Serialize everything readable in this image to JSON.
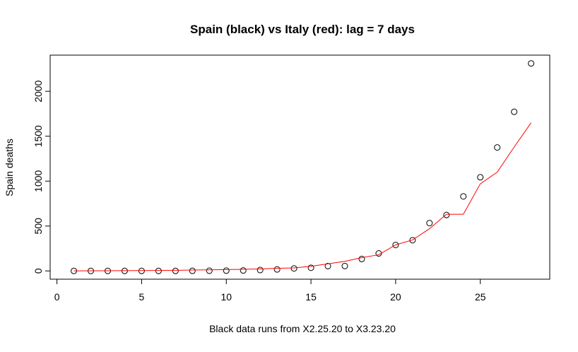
{
  "chart_data": {
    "type": "scatter-line",
    "title": "Spain (black) vs Italy (red): lag = 7 days",
    "x_label": "Black data runs from X2.25.20 to X3.23.20",
    "y_label": "Spain deaths",
    "x": [
      1,
      2,
      3,
      4,
      5,
      6,
      7,
      8,
      9,
      10,
      11,
      12,
      13,
      14,
      15,
      16,
      17,
      18,
      19,
      20,
      21,
      22,
      23,
      24,
      25,
      26,
      27,
      28
    ],
    "series": [
      {
        "name": "Spain",
        "color": "#000000",
        "mark": "point",
        "values": [
          0,
          0,
          0,
          0,
          0,
          0,
          0,
          1,
          2,
          3,
          5,
          10,
          17,
          28,
          35,
          54,
          55,
          133,
          195,
          289,
          342,
          533,
          623,
          830,
          1043,
          1375,
          1772,
          2311
        ]
      },
      {
        "name": "Italy",
        "color": "#ff0000",
        "mark": "line",
        "values": [
          0,
          1,
          2,
          3,
          4,
          5,
          7,
          10,
          12,
          15,
          18,
          22,
          29,
          34,
          52,
          79,
          107,
          148,
          180,
          290,
          345,
          470,
          631,
          631,
          970,
          1100,
          1380,
          1650
        ]
      }
    ],
    "xlim": [
      -0.4,
      29.1
    ],
    "ylim": [
      -92,
      2403
    ],
    "xticks": [
      0,
      5,
      10,
      15,
      20,
      25
    ],
    "yticks": [
      0,
      500,
      1000,
      1500,
      2000
    ]
  }
}
